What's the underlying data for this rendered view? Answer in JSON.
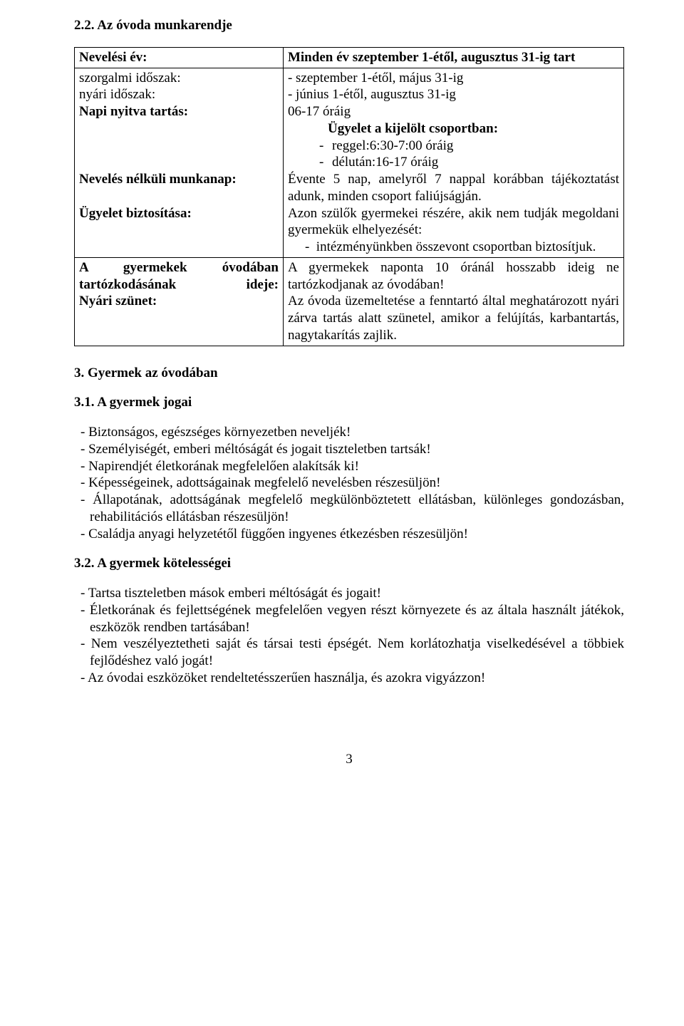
{
  "heading_2_2": "2.2. Az óvoda munkarendje",
  "table": {
    "row1": {
      "left": "Nevelési év:",
      "right": "Minden év szeptember 1-étől, augusztus 31-ig tart"
    },
    "row2": {
      "left_l1": "szorgalmi időszak:",
      "left_l2": "nyári időszak:",
      "left_l3": "Napi nyitva tartás:",
      "left_l4": "Nevelés nélküli munkanap:",
      "left_l5": "Ügyelet biztosítása:",
      "right_l1": "- szeptember 1-étől, május 31-ig",
      "right_l2": "- június 1-étől, augusztus 31-ig",
      "right_l3": "06-17 óráig",
      "right_l4": "Ügyelet a kijelölt csoportban:",
      "right_l5": "reggel:6:30-7:00 óráig",
      "right_l6": "délután:16-17 óráig",
      "right_l7": "Évente 5 nap, amelyről 7 nappal korábban tájékoztatást adunk, minden csoport faliújságján.",
      "right_l8": "Azon szülők gyermekei részére, akik nem tudják megoldani gyermekük elhelyezését:",
      "right_l9": "intézményünkben összevont csoportban biztosítjuk."
    },
    "row3": {
      "left_l1": "A gyermekek óvodában tartózkodásának ideje:",
      "left_l2": "Nyári szünet:",
      "right_l1": "A gyermekek naponta 10 óránál hosszabb ideig ne tartózkodjanak az óvodában!",
      "right_l2": "Az óvoda üzemeltetése a fenntartó által meghatározott nyári zárva tartás alatt szünetel, amikor a felújítás, karbantartás, nagytakarítás zajlik."
    }
  },
  "heading_3": "3.  Gyermek az óvodában",
  "heading_3_1": "3.1. A gyermek jogai",
  "list_3_1": [
    "Biztonságos, egészséges környezetben neveljék!",
    "Személyiségét, emberi méltóságát és jogait tiszteletben tartsák!",
    "Napirendjét életkorának megfelelően alakítsák ki!",
    "Képességeinek, adottságainak megfelelő nevelésben részesüljön!",
    "Állapotának, adottságának megfelelő megkülönböztetett ellátásban, különleges gondozásban, rehabilitációs ellátásban részesüljön!",
    "Családja anyagi helyzetétől függően ingyenes étkezésben részesüljön!"
  ],
  "heading_3_2": "3.2. A gyermek kötelességei",
  "list_3_2": [
    "Tartsa tiszteletben mások emberi méltóságát és jogait!",
    "Életkorának és fejlettségének megfelelően vegyen részt környezete és az általa használt játékok, eszközök rendben tartásában!",
    "Nem veszélyeztetheti saját és társai testi épségét. Nem korlátozhatja viselkedésével a többiek fejlődéshez való jogát!",
    "Az óvodai eszközöket rendeltetésszerűen használja, és azokra vigyázzon!"
  ],
  "page_number": "3"
}
